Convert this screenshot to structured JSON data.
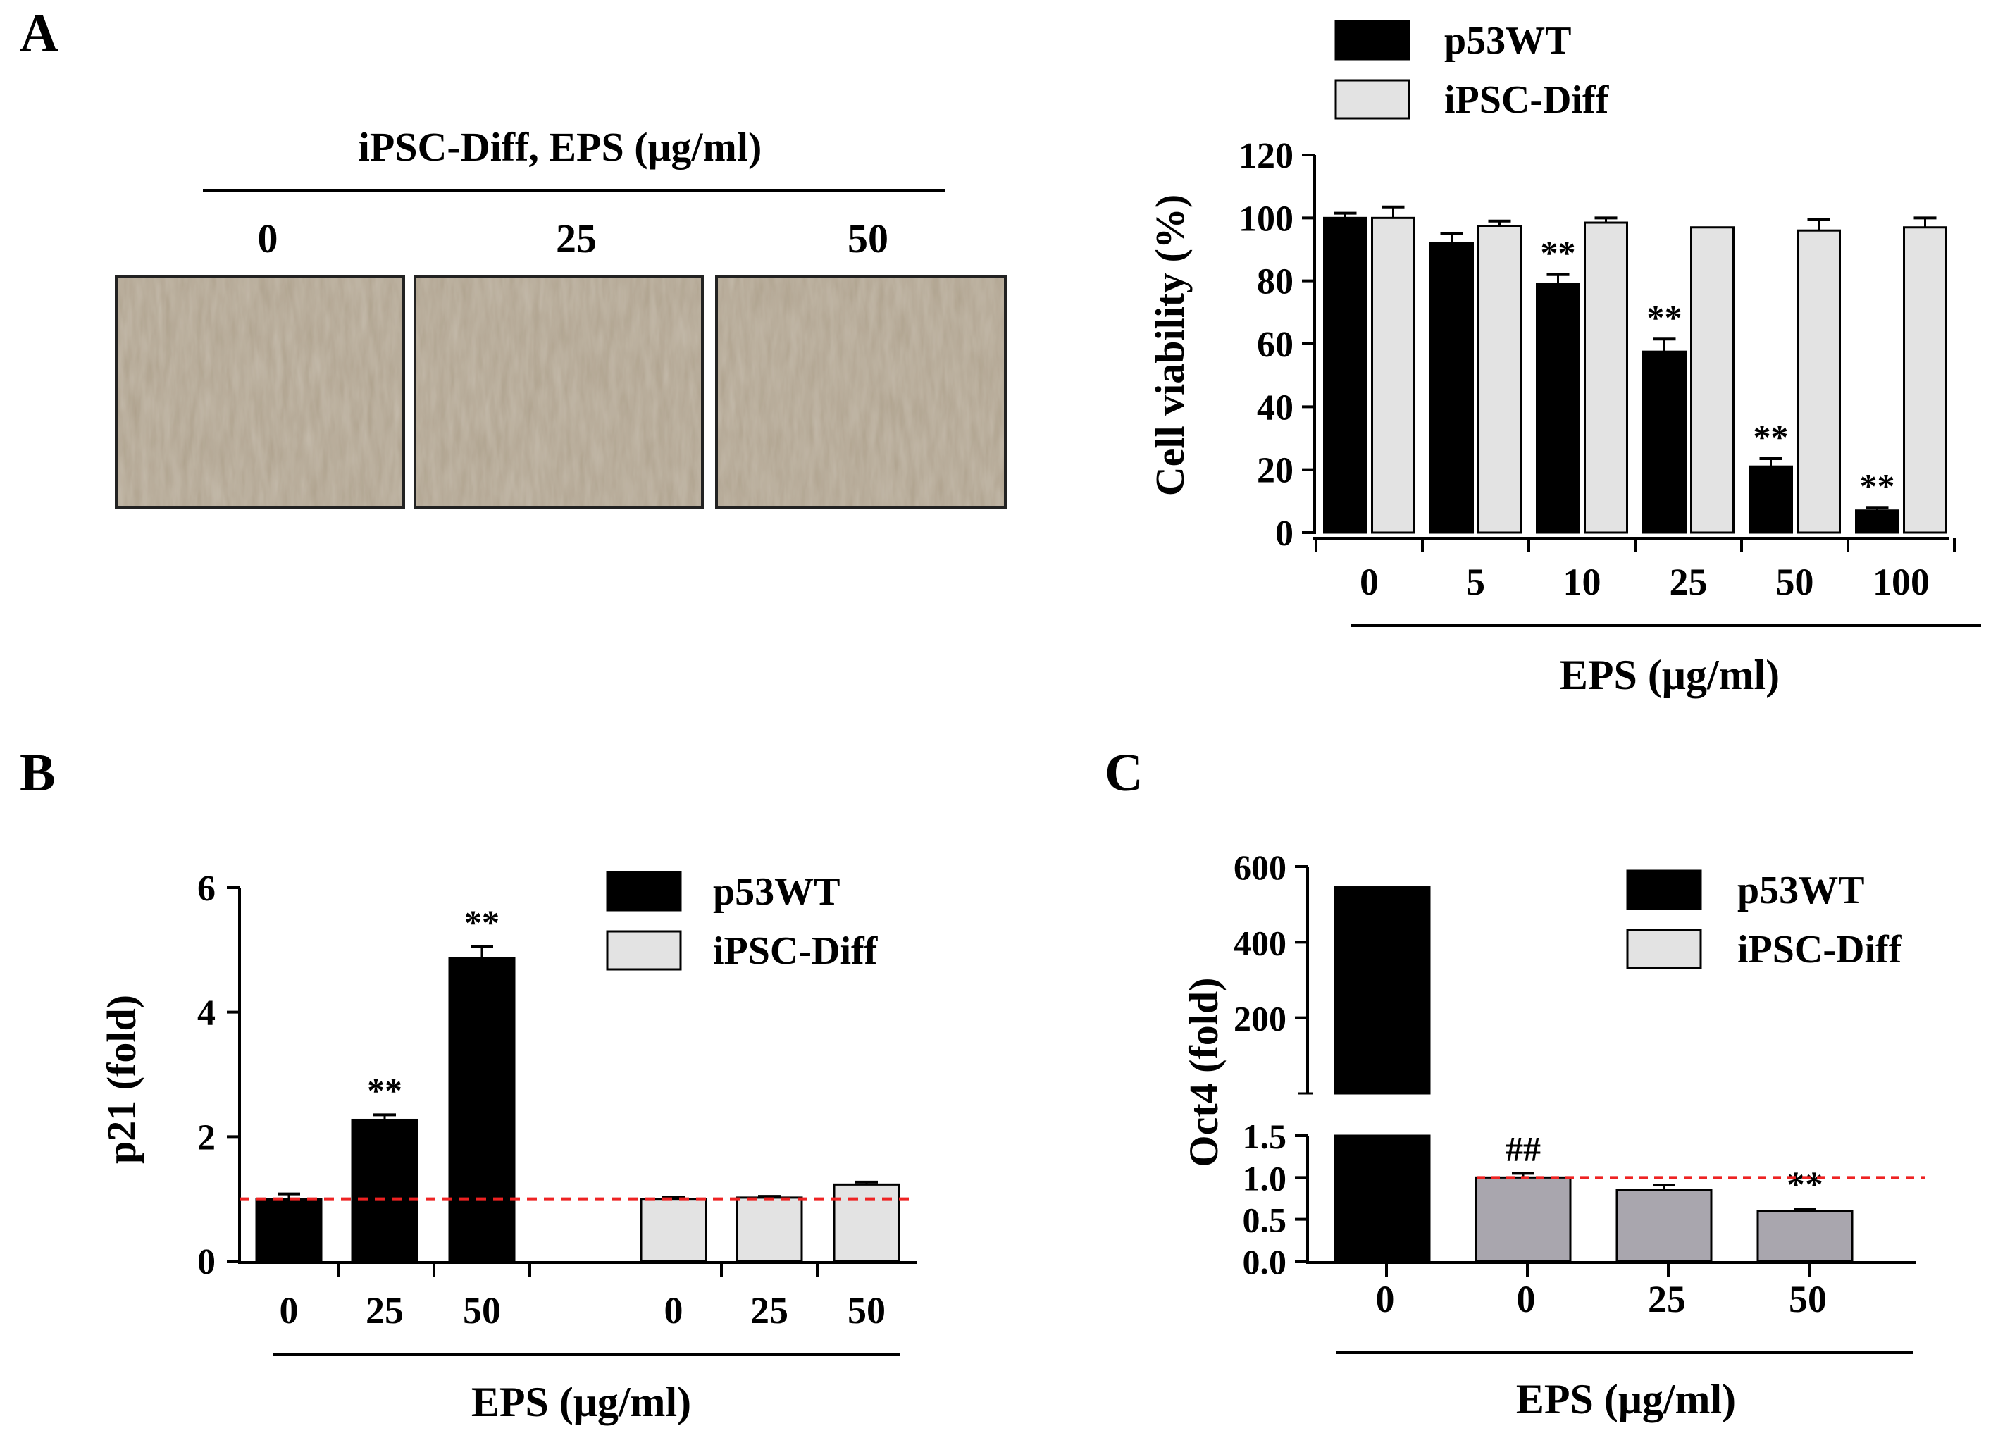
{
  "panel_labels": {
    "a": "A",
    "b": "B",
    "c": "C"
  },
  "colors": {
    "p53wt": "#000000",
    "ipsc": "#e3e3e3",
    "ipsc_c": "#a9a6ae",
    "ref_line": "#ee2222",
    "photo": "#c2b8a8"
  },
  "micrographs": {
    "header": "iPSC-Diff, EPS (μg/ml)",
    "doses": [
      "0",
      "25",
      "50"
    ],
    "note": "Phase-contrast cell images"
  },
  "chart_data": [
    {
      "id": "A-viability",
      "type": "bar",
      "title": "",
      "xlabel": "EPS (μg/ml)",
      "ylabel": "Cell viability (%)",
      "ylim": [
        0,
        120
      ],
      "yticks": [
        0,
        20,
        40,
        60,
        80,
        100,
        120
      ],
      "categories": [
        "0",
        "5",
        "10",
        "25",
        "50",
        "100"
      ],
      "legend": {
        "p53wt": "p53WT",
        "ipsc": "iPSC-Diff"
      },
      "series": [
        {
          "name": "p53WT",
          "values": [
            100,
            92,
            79,
            57.5,
            21,
            7
          ],
          "errors": [
            1.5,
            3,
            3,
            4,
            2.5,
            1
          ],
          "marks": [
            "",
            "",
            "**",
            "**",
            "**",
            "**"
          ]
        },
        {
          "name": "iPSC-Diff",
          "values": [
            100,
            97.5,
            98.5,
            97,
            96,
            97
          ],
          "errors": [
            3.5,
            1.5,
            1.5,
            0,
            3.5,
            3
          ],
          "marks": [
            "",
            "",
            "",
            "",
            "",
            ""
          ]
        }
      ]
    },
    {
      "id": "B-p21",
      "type": "bar",
      "title": "",
      "xlabel": "EPS (μg/ml)",
      "ylabel": "p21 (fold)",
      "ylim": [
        0,
        6
      ],
      "yticks": [
        0,
        2,
        4,
        6
      ],
      "reference_line": 1,
      "legend": {
        "p53wt": "p53WT",
        "ipsc": "iPSC-Diff"
      },
      "groups": [
        {
          "name": "p53WT",
          "categories": [
            "0",
            "25",
            "50"
          ],
          "values": [
            1.0,
            2.27,
            4.87
          ],
          "errors": [
            0.08,
            0.08,
            0.18
          ],
          "marks": [
            "",
            "**",
            "**"
          ]
        },
        {
          "name": "iPSC-Diff",
          "categories": [
            "0",
            "25",
            "50"
          ],
          "values": [
            1.0,
            1.02,
            1.23
          ],
          "errors": [
            0.03,
            0.02,
            0.04
          ],
          "marks": [
            "",
            "",
            ""
          ]
        }
      ]
    },
    {
      "id": "C-oct4",
      "type": "bar",
      "title": "",
      "xlabel": "EPS (μg/ml)",
      "ylabel": "Oct4 (fold)",
      "broken_axis": true,
      "upper_ylim": [
        0,
        600
      ],
      "upper_yticks": [
        200,
        400,
        600
      ],
      "lower_ylim": [
        0,
        1.5
      ],
      "lower_yticks": [
        "0.0",
        "0.5",
        "1.0",
        "1.5"
      ],
      "reference_line": 1,
      "legend": {
        "p53wt": "p53WT",
        "ipsc": "iPSC-Diff"
      },
      "categories": [
        "0",
        "0",
        "25",
        "50"
      ],
      "series_of_bars": [
        "p53WT",
        "iPSC-Diff",
        "iPSC-Diff",
        "iPSC-Diff"
      ],
      "values": [
        545,
        1.0,
        0.85,
        0.6
      ],
      "errors": [
        0,
        0.05,
        0.06,
        0.02
      ],
      "marks": [
        "",
        "##",
        "",
        "**"
      ]
    }
  ]
}
